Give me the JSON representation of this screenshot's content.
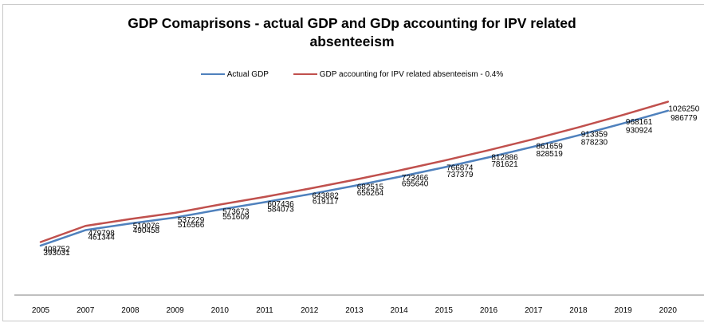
{
  "chart_data": {
    "type": "line",
    "title_line1": "GDP Comaprisons - actual GDP and GDp accounting for IPV related",
    "title_line2": "absenteeism",
    "x": [
      "2005",
      "2007",
      "2008",
      "2009",
      "2010",
      "2011",
      "2012",
      "2013",
      "2014",
      "2015",
      "2016",
      "2017",
      "2018",
      "2019",
      "2020"
    ],
    "series": [
      {
        "name": "Actual GDP",
        "color": "#4f81bd",
        "values": [
          393031,
          461344,
          490458,
          516566,
          551609,
          584073,
          619117,
          656264,
          695640,
          737379,
          781621,
          828519,
          878230,
          930924,
          986779
        ]
      },
      {
        "name": "GDP accounting for IPV related absenteeism - 0.4%",
        "color": "#c0504d",
        "values": [
          408752,
          479798,
          510076,
          537229,
          573673,
          607436,
          643882,
          682515,
          723466,
          766874,
          812886,
          861659,
          913359,
          968161,
          1026250
        ]
      }
    ],
    "xlabel": "",
    "ylabel": "",
    "legend_position": "top",
    "grid": false
  }
}
